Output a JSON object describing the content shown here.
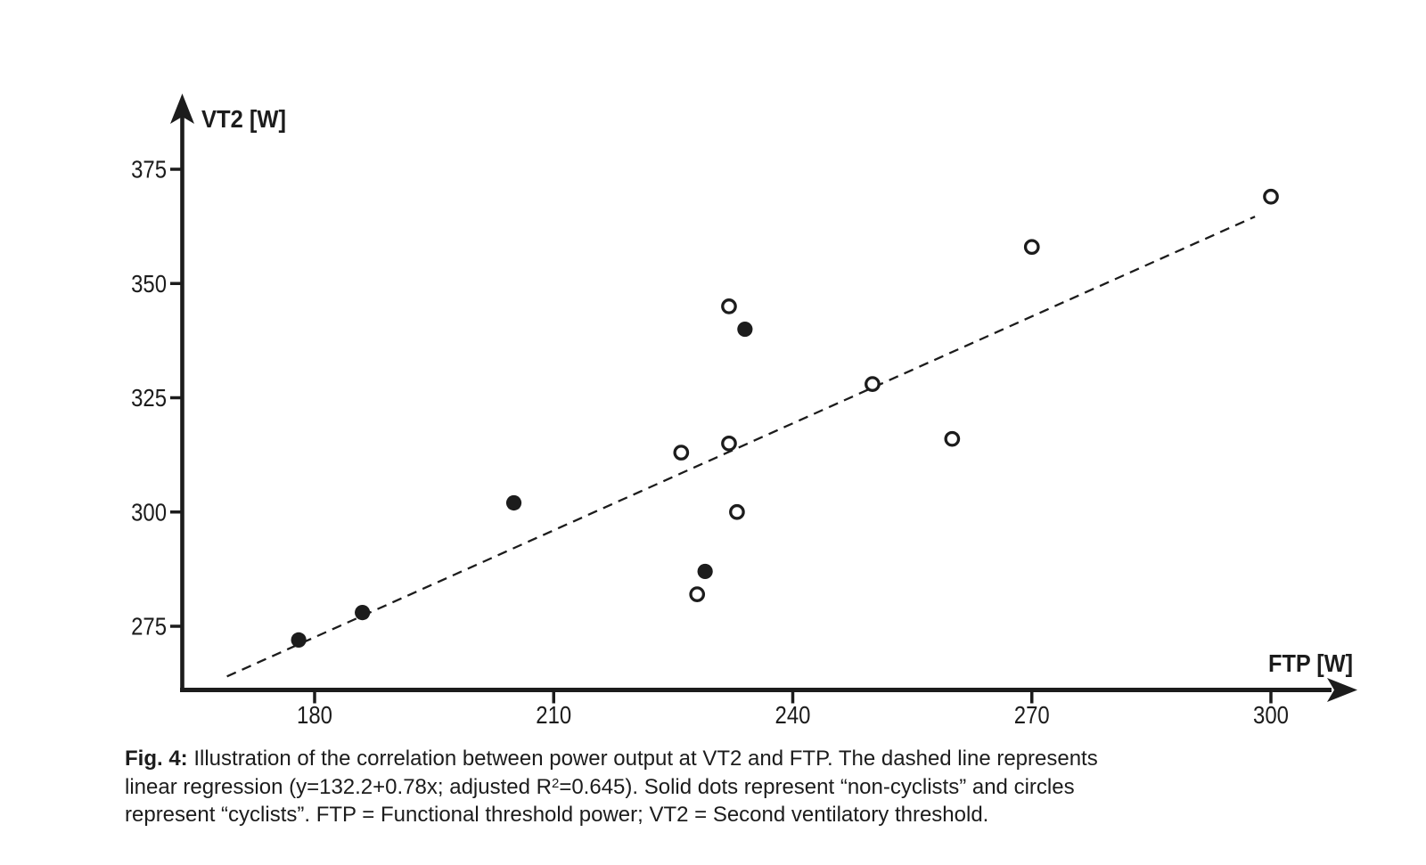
{
  "figure": {
    "caption": {
      "line1_bold": "Fig. 4:",
      "line1_rest": " Illustration of the correlation between power output at VT2 and FTP. The dashed line represents",
      "line2_before_sup": "linear regression (y=132.2+0.78x; adjusted R",
      "line2_sup": "2",
      "line2_after_sup": "=0.645). Solid dots represent “non-cyclists” and circles",
      "line3": "represent “cyclists”. FTP = Functional threshold power; VT2 = Second ventilatory threshold."
    }
  },
  "chart_data": {
    "type": "scatter",
    "title": "",
    "xlabel": "FTP [W]",
    "ylabel": "VT2 [W]",
    "x_ticks": [
      180,
      210,
      240,
      270,
      300
    ],
    "y_ticks": [
      375,
      350,
      325,
      300,
      275
    ],
    "xlim": [
      163,
      311
    ],
    "ylim": [
      261,
      390
    ],
    "grid": false,
    "legend_position": "none (markers described in caption)",
    "ink_color": "#1c1c1c",
    "background_color": "#ffffff",
    "series": [
      {
        "name": "non-cyclists",
        "marker": "solid-dot",
        "points": [
          [
            178,
            272
          ],
          [
            186,
            278
          ],
          [
            205,
            302
          ],
          [
            229,
            287
          ],
          [
            234,
            340
          ]
        ]
      },
      {
        "name": "cyclists",
        "marker": "open-circle",
        "points": [
          [
            226,
            313
          ],
          [
            228,
            282
          ],
          [
            232,
            315
          ],
          [
            232,
            345
          ],
          [
            233,
            300
          ],
          [
            250,
            328
          ],
          [
            260,
            316
          ],
          [
            270,
            358
          ],
          [
            300,
            369
          ]
        ]
      }
    ],
    "regression": {
      "equation": "y=132.2+0.78x",
      "intercept": 132.2,
      "slope": 0.78,
      "adjusted_r2": 0.645,
      "style": "dashed",
      "x_range": [
        169,
        298
      ]
    }
  }
}
